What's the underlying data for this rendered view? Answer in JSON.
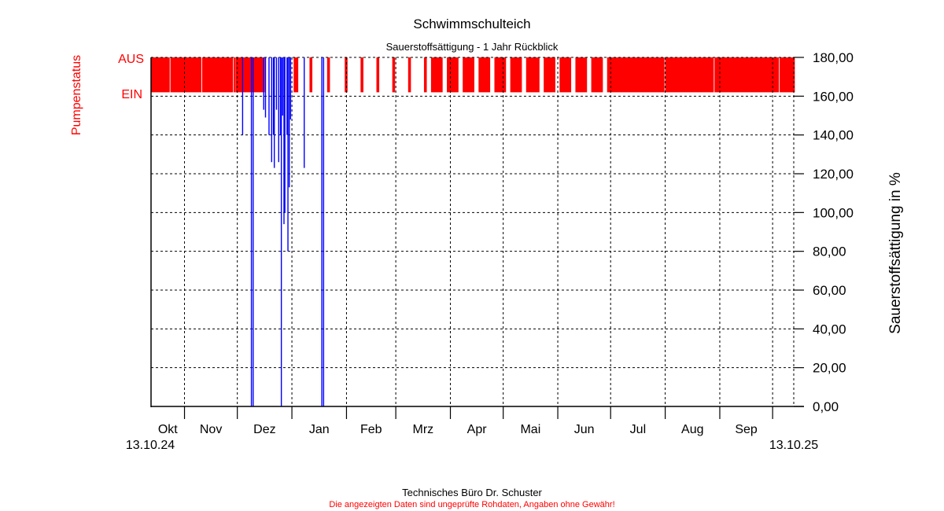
{
  "chart_data": {
    "type": "bar",
    "title": "Schwimmschulteich",
    "subtitle": "Sauerstoffsättigung - 1 Jahr Rückblick",
    "ylabel": "Sauerstoffsättigung in %",
    "status_label": "Pumpenstatus",
    "status_levels": [
      "AUS",
      "EIN"
    ],
    "ylim": [
      0,
      180
    ],
    "yticks": [
      "0,00",
      "20,00",
      "40,00",
      "60,00",
      "80,00",
      "100,00",
      "120,00",
      "140,00",
      "160,00",
      "180,00"
    ],
    "ytick_values": [
      0,
      20,
      40,
      60,
      80,
      100,
      120,
      140,
      160,
      180
    ],
    "xlim": [
      "2024-10-13",
      "2025-10-13"
    ],
    "x_start_label": "13.10.24",
    "x_end_label": "13.10.25",
    "months": [
      {
        "label": "Okt",
        "start": "2024-10-13",
        "end": "2024-11-01"
      },
      {
        "label": "Nov",
        "start": "2024-11-01",
        "end": "2024-12-01"
      },
      {
        "label": "Dez",
        "start": "2024-12-01",
        "end": "2025-01-01"
      },
      {
        "label": "Jan",
        "start": "2025-01-01",
        "end": "2025-02-01"
      },
      {
        "label": "Feb",
        "start": "2025-02-01",
        "end": "2025-03-01"
      },
      {
        "label": "Mrz",
        "start": "2025-03-01",
        "end": "2025-04-01"
      },
      {
        "label": "Apr",
        "start": "2025-04-01",
        "end": "2025-05-01"
      },
      {
        "label": "Mai",
        "start": "2025-05-01",
        "end": "2025-06-01"
      },
      {
        "label": "Jun",
        "start": "2025-06-01",
        "end": "2025-07-01"
      },
      {
        "label": "Jul",
        "start": "2025-07-01",
        "end": "2025-08-01"
      },
      {
        "label": "Aug",
        "start": "2025-08-01",
        "end": "2025-09-01"
      },
      {
        "label": "Sep",
        "start": "2025-09-01",
        "end": "2025-10-01"
      }
    ],
    "grid": true,
    "pump_aus_periods": [
      [
        "2024-10-13",
        "2024-10-23"
      ],
      [
        "2024-10-24",
        "2024-11-10"
      ],
      [
        "2024-11-11",
        "2024-11-28"
      ],
      [
        "2024-11-29",
        "2024-11-29"
      ],
      [
        "2024-11-30",
        "2024-12-16"
      ],
      [
        "2025-01-02",
        "2025-01-04"
      ],
      [
        "2025-01-11",
        "2025-01-12"
      ],
      [
        "2025-01-21",
        "2025-01-22"
      ],
      [
        "2025-01-31",
        "2025-02-01"
      ],
      [
        "2025-02-09",
        "2025-02-10"
      ],
      [
        "2025-02-18",
        "2025-02-19"
      ],
      [
        "2025-02-27",
        "2025-02-28"
      ],
      [
        "2025-03-08",
        "2025-03-09"
      ],
      [
        "2025-03-17",
        "2025-03-18"
      ],
      [
        "2025-03-21",
        "2025-03-27"
      ],
      [
        "2025-03-30",
        "2025-04-05"
      ],
      [
        "2025-04-08",
        "2025-04-14"
      ],
      [
        "2025-04-17",
        "2025-04-23"
      ],
      [
        "2025-04-26",
        "2025-05-02"
      ],
      [
        "2025-05-05",
        "2025-05-11"
      ],
      [
        "2025-05-14",
        "2025-05-21"
      ],
      [
        "2025-05-24",
        "2025-05-30"
      ],
      [
        "2025-06-02",
        "2025-06-08"
      ],
      [
        "2025-06-11",
        "2025-06-17"
      ],
      [
        "2025-06-20",
        "2025-06-26"
      ],
      [
        "2025-06-29",
        "2025-07-31"
      ],
      [
        "2025-08-01",
        "2025-08-28"
      ],
      [
        "2025-08-29",
        "2025-10-04"
      ],
      [
        "2025-10-05",
        "2025-10-13"
      ]
    ],
    "oxygen_drops": [
      {
        "date": "2024-12-04T00:00",
        "min": 140
      },
      {
        "date": "2024-12-09T00:00",
        "min": 0
      },
      {
        "date": "2024-12-10T00:00",
        "min": 0
      },
      {
        "date": "2024-12-16T00:00",
        "min": 153
      },
      {
        "date": "2024-12-17T00:00",
        "min": 149
      },
      {
        "date": "2024-12-19T00:00",
        "min": 140
      },
      {
        "date": "2024-12-20T12:00",
        "min": 126
      },
      {
        "date": "2024-12-21T12:00",
        "min": 140
      },
      {
        "date": "2024-12-22T00:00",
        "min": 123
      },
      {
        "date": "2024-12-23T06:00",
        "min": 153
      },
      {
        "date": "2024-12-24T12:00",
        "min": 126
      },
      {
        "date": "2024-12-25T12:00",
        "min": 140
      },
      {
        "date": "2024-12-26T00:00",
        "min": 0
      },
      {
        "date": "2024-12-26T18:00",
        "min": 150
      },
      {
        "date": "2024-12-27T12:00",
        "min": 94
      },
      {
        "date": "2024-12-28T00:00",
        "min": 100
      },
      {
        "date": "2024-12-29T06:00",
        "min": 140
      },
      {
        "date": "2024-12-29T18:00",
        "min": 80
      },
      {
        "date": "2024-12-30T12:00",
        "min": 113
      },
      {
        "date": "2024-12-31T06:00",
        "min": 148
      },
      {
        "date": "2025-01-08T00:00",
        "min": 123
      },
      {
        "date": "2025-01-18T00:00",
        "min": 0
      },
      {
        "date": "2025-01-19T00:00",
        "min": 0
      }
    ],
    "colors": {
      "pump": "#ff0000",
      "oxygen": "#0000ff",
      "status_text": "#ff0000",
      "grid": "#000000"
    }
  },
  "footer": {
    "company": "Technisches Büro Dr. Schuster",
    "disclaimer": "Die angezeigten Daten sind ungeprüfte Rohdaten, Angaben ohne Gewähr!"
  }
}
